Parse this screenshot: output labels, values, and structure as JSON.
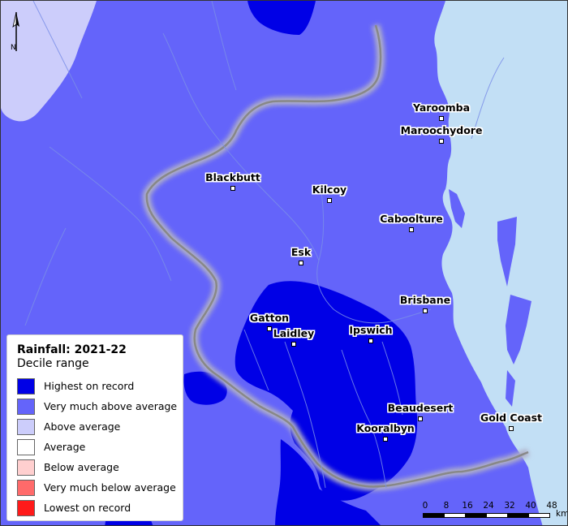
{
  "legend": {
    "title": "Rainfall: 2021-22",
    "subtitle": "Decile range",
    "items": [
      {
        "label": "Highest on record",
        "color": "#0000e6"
      },
      {
        "label": "Very much above average",
        "color": "#6464fa"
      },
      {
        "label": "Above average",
        "color": "#cccdfb"
      },
      {
        "label": "Average",
        "color": "#ffffff"
      },
      {
        "label": "Below average",
        "color": "#ffcfcf"
      },
      {
        "label": "Very much below average",
        "color": "#ff6a6a"
      },
      {
        "label": "Lowest on record",
        "color": "#ff1a1a"
      }
    ]
  },
  "towns": [
    {
      "name": "Yaroomba"
    },
    {
      "name": "Maroochydore"
    },
    {
      "name": "Blackbutt"
    },
    {
      "name": "Kilcoy"
    },
    {
      "name": "Caboolture"
    },
    {
      "name": "Esk"
    },
    {
      "name": "Brisbane"
    },
    {
      "name": "Gatton"
    },
    {
      "name": "Laidley"
    },
    {
      "name": "Ipswich"
    },
    {
      "name": "Beaudesert"
    },
    {
      "name": "Gold Coast"
    },
    {
      "name": "Kooralbyn"
    }
  ],
  "scale": {
    "ticks": [
      "0",
      "8",
      "16",
      "24",
      "32",
      "40",
      "48"
    ],
    "unit": "km"
  },
  "north_label": "N",
  "colors": {
    "ocean": "#c2dff5",
    "catchment_border": "#888888",
    "rivers": "#7a8ee8"
  }
}
